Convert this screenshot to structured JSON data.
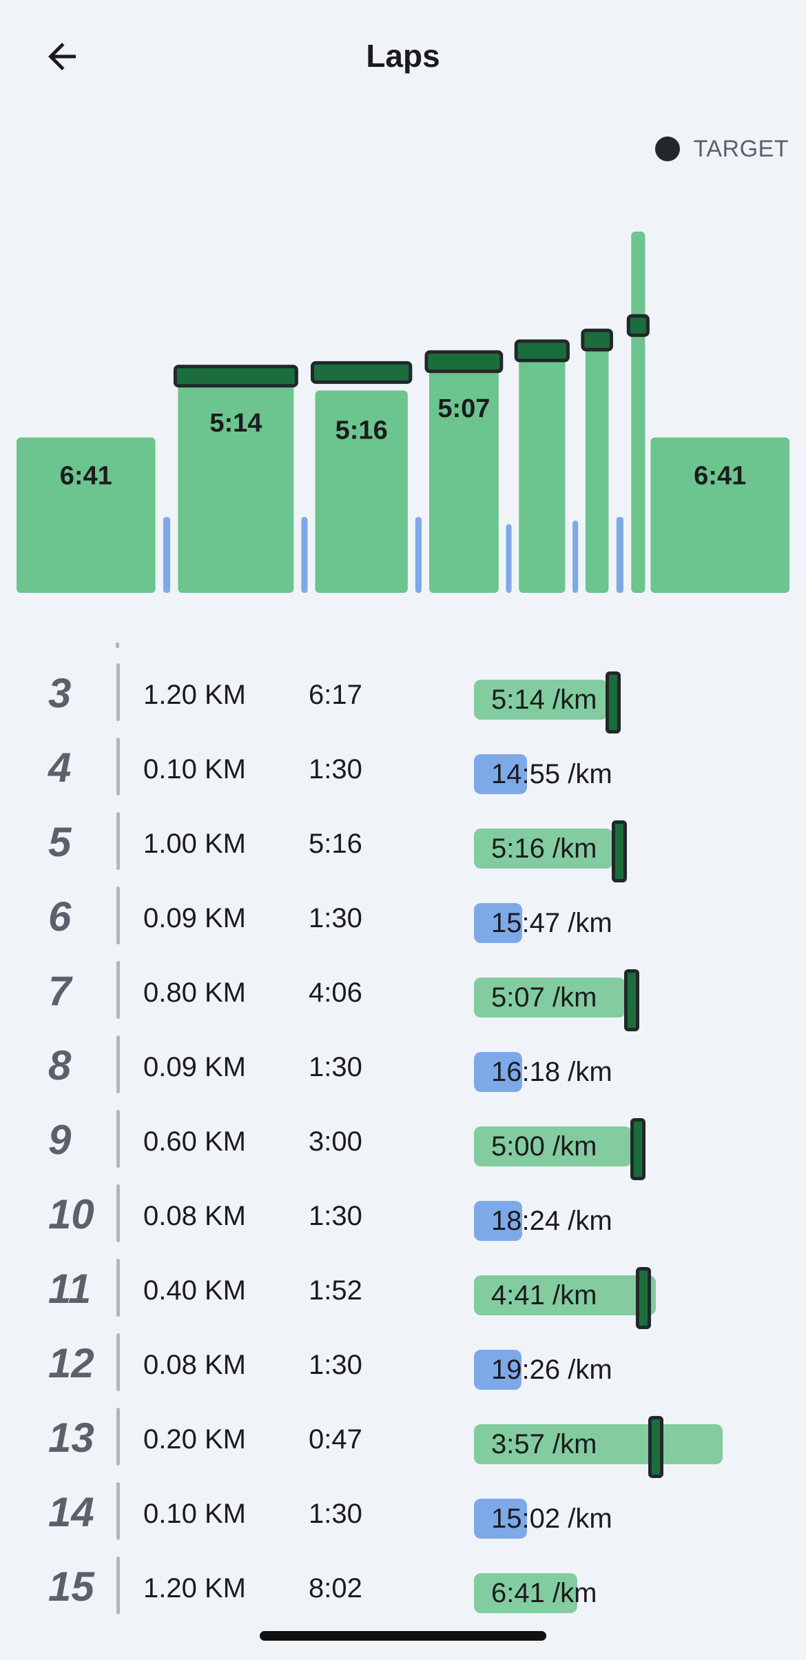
{
  "header": {
    "title": "Laps",
    "back_icon": "arrow-left-icon"
  },
  "legend": {
    "label": "TARGET",
    "dot_color": "#22272b"
  },
  "colors": {
    "run_bar": "#6cc48e",
    "run_bar_light": "#83cc9f",
    "rest_bar": "#7ea9e8",
    "target_fill": "#1b6e3c",
    "target_border": "#22272b"
  },
  "chart": {
    "labels": [
      "6:41",
      "5:14",
      "5:16",
      "5:07",
      "6:41"
    ],
    "bars": [
      {
        "kind": "run",
        "label": "6:41",
        "level": 0.43,
        "width_rel": 1.2
      },
      {
        "kind": "rest",
        "level": 0.21,
        "width_rel": 0.1
      },
      {
        "kind": "run",
        "label": "5:14",
        "level": 0.58,
        "width_rel": 1.0,
        "target": 0.6
      },
      {
        "kind": "rest",
        "level": 0.21,
        "width_rel": 0.09
      },
      {
        "kind": "run",
        "label": "5:16",
        "level": 0.56,
        "width_rel": 0.8,
        "target": 0.61
      },
      {
        "kind": "rest",
        "level": 0.21,
        "width_rel": 0.09
      },
      {
        "kind": "run",
        "label": "5:07",
        "level": 0.62,
        "width_rel": 0.6,
        "target": 0.64
      },
      {
        "kind": "rest",
        "level": 0.19,
        "width_rel": 0.08
      },
      {
        "kind": "run",
        "level": 0.65,
        "width_rel": 0.4,
        "target": 0.67
      },
      {
        "kind": "rest",
        "level": 0.2,
        "width_rel": 0.08
      },
      {
        "kind": "run",
        "level": 0.72,
        "width_rel": 0.2,
        "target": 0.7
      },
      {
        "kind": "rest",
        "level": 0.21,
        "width_rel": 0.1
      },
      {
        "kind": "run",
        "level": 1.0,
        "width_rel": 0.12,
        "target": 0.74
      },
      {
        "kind": "run",
        "label": "6:41",
        "level": 0.43,
        "width_rel": 1.2
      }
    ]
  },
  "laps": [
    {
      "num": "3",
      "distance": "1.20 KM",
      "time": "6:17",
      "pace": "5:14 /km",
      "kind": "run",
      "level": 0.22,
      "target": 0.23
    },
    {
      "num": "4",
      "distance": "0.10 KM",
      "time": "1:30",
      "pace": "14:55 /km",
      "kind": "rest",
      "level": 0.088
    },
    {
      "num": "5",
      "distance": "1.00 KM",
      "time": "5:16",
      "pace": "5:16 /km",
      "kind": "run",
      "level": 0.23,
      "target": 0.24
    },
    {
      "num": "6",
      "distance": "0.09 KM",
      "time": "1:30",
      "pace": "15:47 /km",
      "kind": "rest",
      "level": 0.08
    },
    {
      "num": "7",
      "distance": "0.80 KM",
      "time": "4:06",
      "pace": "5:07 /km",
      "kind": "run",
      "level": 0.25,
      "target": 0.26
    },
    {
      "num": "8",
      "distance": "0.09 KM",
      "time": "1:30",
      "pace": "16:18 /km",
      "kind": "rest",
      "level": 0.08
    },
    {
      "num": "9",
      "distance": "0.60 KM",
      "time": "3:00",
      "pace": "5:00 /km",
      "kind": "run",
      "level": 0.26,
      "target": 0.27
    },
    {
      "num": "10",
      "distance": "0.08 KM",
      "time": "1:30",
      "pace": "18:24 /km",
      "kind": "rest",
      "level": 0.08
    },
    {
      "num": "11",
      "distance": "0.40 KM",
      "time": "1:52",
      "pace": "4:41 /km",
      "kind": "run",
      "level": 0.3,
      "target": 0.28
    },
    {
      "num": "12",
      "distance": "0.08 KM",
      "time": "1:30",
      "pace": "19:26 /km",
      "kind": "rest",
      "level": 0.078
    },
    {
      "num": "13",
      "distance": "0.20 KM",
      "time": "0:47",
      "pace": "3:57 /km",
      "kind": "run",
      "level": 0.41,
      "target": 0.3
    },
    {
      "num": "14",
      "distance": "0.10 KM",
      "time": "1:30",
      "pace": "15:02 /km",
      "kind": "rest",
      "level": 0.088
    },
    {
      "num": "15",
      "distance": "1.20 KM",
      "time": "8:02",
      "pace": "6:41 /km",
      "kind": "run",
      "level": 0.17
    }
  ]
}
